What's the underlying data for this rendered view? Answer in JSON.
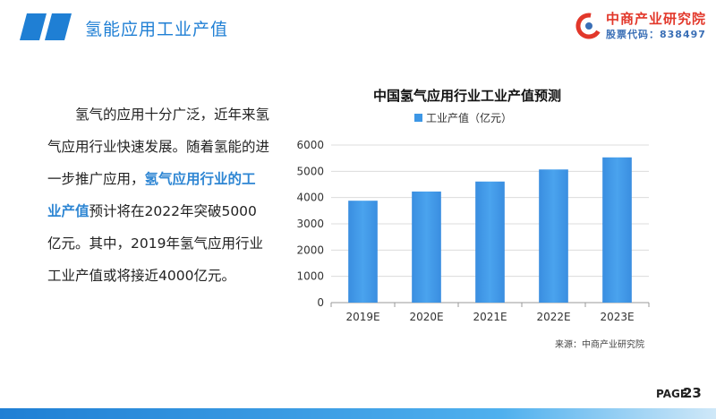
{
  "header": {
    "title": "氢能应用工业产值"
  },
  "logo": {
    "name": "中商产业研究院",
    "stock_code": "股票代码：838497"
  },
  "body": {
    "part1": "氢气的应用十分广泛，近年来氢气应用行业快速发展。随着氢能的进一步推广应用，",
    "highlight": "氢气应用行业的工业产值",
    "part2": "预计将在2022年突破5000亿元。其中，2019年氢气应用行业工业产值或将接近4000亿元。"
  },
  "chart_data": {
    "type": "bar",
    "title": "中国氢气应用行业工业产值预测",
    "categories": [
      "2019E",
      "2020E",
      "2021E",
      "2022E",
      "2023E"
    ],
    "series": [
      {
        "name": "工业产值（亿元）",
        "values": [
          3880,
          4230,
          4610,
          5070,
          5530
        ]
      }
    ],
    "yticks": [
      "0",
      "1000",
      "2000",
      "3000",
      "4000",
      "5000",
      "6000"
    ],
    "ylim": [
      0,
      6000
    ],
    "grid": true,
    "legend": "top",
    "bar_color": "#3d97e6"
  },
  "source": "来源：中商产业研究院",
  "footer": {
    "page_label": "PAGE",
    "page_number": "23"
  },
  "colors": {
    "accent": "#1f7fd4",
    "highlight": "#2e86d3",
    "logo_red": "#e2372a",
    "bar_gradient_start": "#1e6fc8",
    "bar_gradient_end": "#8cc8f0"
  }
}
